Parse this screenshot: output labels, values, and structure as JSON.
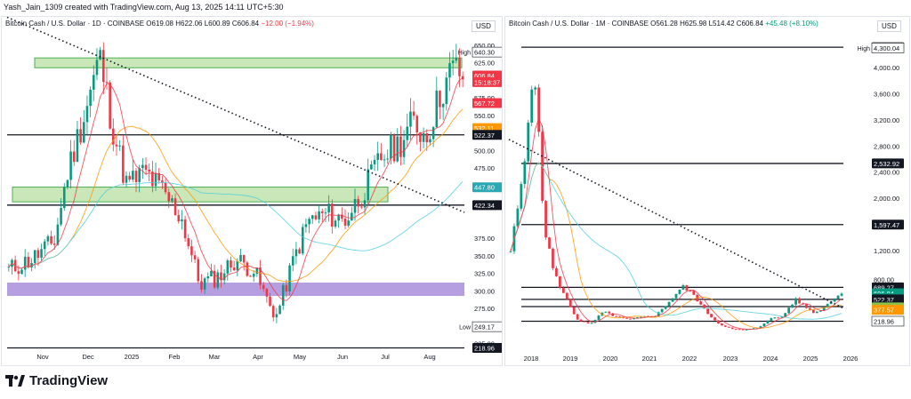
{
  "header": {
    "credit": "Yash_Jain_1309 created with TradingView.com, Aug 13, 2025 14:11 UTC+5:30"
  },
  "brand": {
    "name": "TradingView"
  },
  "chart_data": [
    {
      "type": "candlestick",
      "title": "Bitcoin Cash / U.S. Dollar · 1D · COINBASE",
      "ohlc": {
        "O": "O619.08",
        "H": "H622.06",
        "L": "L600.89",
        "C": "C606.84",
        "change": "−12.00 (−1.94%)"
      },
      "currency": "USD",
      "y_ticks": [
        "650.00",
        "625.00",
        "575.00",
        "550.00",
        "500.00",
        "475.00",
        "375.00",
        "350.00",
        "325.00",
        "300.00",
        "275.00",
        "225.00"
      ],
      "x_ticks": [
        "Nov",
        "Dec",
        "2025",
        "Feb",
        "Mar",
        "Apr",
        "May",
        "Jun",
        "Jul",
        "Aug"
      ],
      "ylim": [
        212,
        655
      ],
      "price_labels": [
        {
          "text": "High",
          "value": 640.3,
          "tag": "640.30",
          "kind": "plain"
        },
        {
          "text": "",
          "value": 606.84,
          "tag": "606.84",
          "kind": "red"
        },
        {
          "text": "",
          "value": 597.5,
          "tag": "15:18:37",
          "kind": "red"
        },
        {
          "text": "",
          "value": 567.72,
          "tag": "567.72",
          "kind": "red"
        },
        {
          "text": "",
          "value": 532.11,
          "tag": "532.11",
          "kind": "orange"
        },
        {
          "text": "",
          "value": 522.37,
          "tag": "522.37",
          "kind": "black"
        },
        {
          "text": "",
          "value": 447.8,
          "tag": "447.80",
          "kind": "teal"
        },
        {
          "text": "",
          "value": 422.34,
          "tag": "422.34",
          "kind": "black"
        },
        {
          "text": "Low",
          "value": 249.17,
          "tag": "249.17",
          "kind": "plain"
        },
        {
          "text": "",
          "value": 218.96,
          "tag": "218.96",
          "kind": "black"
        }
      ],
      "horizontal_lines": [
        522.37,
        422.34,
        218.96
      ],
      "zones": [
        {
          "from": 618,
          "to": 632,
          "color": "#b7dfa0"
        },
        {
          "from": 427,
          "to": 448,
          "color": "#b7dfa0"
        },
        {
          "from": 293,
          "to": 312,
          "color": "#9c7fd6"
        }
      ],
      "trendline": [
        {
          "t": 0,
          "v": 690
        },
        {
          "t": 1,
          "v": 412
        }
      ],
      "key_prices": [
        {
          "t": 0.0,
          "v": 330
        },
        {
          "t": 0.05,
          "v": 345
        },
        {
          "t": 0.1,
          "v": 370
        },
        {
          "t": 0.13,
          "v": 470
        },
        {
          "t": 0.17,
          "v": 560
        },
        {
          "t": 0.2,
          "v": 635
        },
        {
          "t": 0.23,
          "v": 530
        },
        {
          "t": 0.26,
          "v": 450
        },
        {
          "t": 0.3,
          "v": 470
        },
        {
          "t": 0.34,
          "v": 440
        },
        {
          "t": 0.38,
          "v": 405
        },
        {
          "t": 0.42,
          "v": 310
        },
        {
          "t": 0.46,
          "v": 320
        },
        {
          "t": 0.5,
          "v": 345
        },
        {
          "t": 0.54,
          "v": 330
        },
        {
          "t": 0.57,
          "v": 285
        },
        {
          "t": 0.59,
          "v": 265
        },
        {
          "t": 0.63,
          "v": 350
        },
        {
          "t": 0.66,
          "v": 400
        },
        {
          "t": 0.7,
          "v": 410
        },
        {
          "t": 0.74,
          "v": 400
        },
        {
          "t": 0.78,
          "v": 440
        },
        {
          "t": 0.82,
          "v": 490
        },
        {
          "t": 0.86,
          "v": 510
        },
        {
          "t": 0.89,
          "v": 540
        },
        {
          "t": 0.92,
          "v": 520
        },
        {
          "t": 0.95,
          "v": 580
        },
        {
          "t": 0.98,
          "v": 620
        },
        {
          "t": 1.0,
          "v": 606.84
        }
      ]
    },
    {
      "type": "candlestick",
      "title": "Bitcoin Cash / U.S. Dollar · 1M · COINBASE",
      "ohlc": {
        "O": "O561.28",
        "H": "H625.98",
        "L": "L514.42",
        "C": "C606.84",
        "change": "+45.48 (+8.10%)"
      },
      "currency": "USD",
      "y_ticks": [
        "4,000.00",
        "3,600.00",
        "3,200.00",
        "2,800.00",
        "2,400.00",
        "2,000.00",
        "1,200.00",
        "800.00"
      ],
      "x_ticks": [
        "2018",
        "2019",
        "2020",
        "2021",
        "2022",
        "2023",
        "2024",
        "2025",
        "2026"
      ],
      "ylim": [
        0,
        4500
      ],
      "price_labels": [
        {
          "text": "",
          "value": 4311.04,
          "tag": "4,311.04",
          "kind": "black"
        },
        {
          "text": "High",
          "value": 4300.04,
          "tag": "4,300.04",
          "kind": "plain"
        },
        {
          "text": "",
          "value": 2532.92,
          "tag": "2,532.92",
          "kind": "black"
        },
        {
          "text": "",
          "value": 1597.47,
          "tag": "1,597.47",
          "kind": "black"
        },
        {
          "text": "",
          "value": 689.27,
          "tag": "689.27",
          "kind": "black"
        },
        {
          "text": "",
          "value": 606.84,
          "tag": "606.84",
          "kind": "green"
        },
        {
          "text": "",
          "value": 540,
          "tag": "18d 16h",
          "kind": "green"
        },
        {
          "text": "",
          "value": 522.37,
          "tag": "522.37",
          "kind": "black"
        },
        {
          "text": "",
          "value": 422.34,
          "tag": "422.34",
          "kind": "black"
        },
        {
          "text": "",
          "value": 411.99,
          "tag": "411.99",
          "kind": "olive"
        },
        {
          "text": "",
          "value": 377.57,
          "tag": "377.57",
          "kind": "orange"
        },
        {
          "text": "",
          "value": 218.96,
          "tag": "218.96",
          "kind": "plain"
        }
      ],
      "horizontal_lines": [
        4311.04,
        2532.92,
        1597.47,
        689.27,
        522.37,
        422.34,
        218.96
      ],
      "trendline": [
        {
          "t": 0,
          "v": 2900
        },
        {
          "t": 1,
          "v": 400
        }
      ],
      "key_prices": [
        {
          "t": 0.0,
          "v": 1200
        },
        {
          "t": 0.04,
          "v": 2400
        },
        {
          "t": 0.07,
          "v": 4200
        },
        {
          "t": 0.1,
          "v": 1600
        },
        {
          "t": 0.13,
          "v": 900
        },
        {
          "t": 0.16,
          "v": 600
        },
        {
          "t": 0.2,
          "v": 250
        },
        {
          "t": 0.24,
          "v": 170
        },
        {
          "t": 0.28,
          "v": 350
        },
        {
          "t": 0.32,
          "v": 280
        },
        {
          "t": 0.36,
          "v": 240
        },
        {
          "t": 0.4,
          "v": 280
        },
        {
          "t": 0.44,
          "v": 300
        },
        {
          "t": 0.48,
          "v": 500
        },
        {
          "t": 0.52,
          "v": 700
        },
        {
          "t": 0.55,
          "v": 600
        },
        {
          "t": 0.59,
          "v": 350
        },
        {
          "t": 0.63,
          "v": 180
        },
        {
          "t": 0.67,
          "v": 110
        },
        {
          "t": 0.71,
          "v": 100
        },
        {
          "t": 0.75,
          "v": 130
        },
        {
          "t": 0.78,
          "v": 250
        },
        {
          "t": 0.82,
          "v": 280
        },
        {
          "t": 0.86,
          "v": 520
        },
        {
          "t": 0.89,
          "v": 420
        },
        {
          "t": 0.92,
          "v": 330
        },
        {
          "t": 0.95,
          "v": 420
        },
        {
          "t": 0.98,
          "v": 560
        },
        {
          "t": 1.0,
          "v": 606.84
        }
      ]
    }
  ]
}
